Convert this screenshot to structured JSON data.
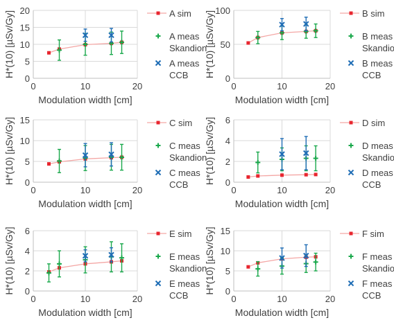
{
  "chart_data": [
    {
      "type": "scatter",
      "xlabel": "Modulation width [cm]",
      "ylabel": "H*(10) [µSv/Gy]",
      "xlim": [
        0,
        20
      ],
      "xticks": [
        0,
        10,
        20
      ],
      "ylim": [
        0,
        20
      ],
      "yticks": [
        0,
        5,
        10,
        15,
        20
      ],
      "grid": true,
      "legend": "right",
      "series": [
        {
          "name": "A sim",
          "kind": "line",
          "color": "#e8262f",
          "x": [
            3,
            5,
            10,
            15,
            17
          ],
          "y": [
            7.5,
            8.6,
            9.9,
            10.3,
            10.6
          ]
        },
        {
          "name": "A meas Skandion",
          "kind": "plus",
          "color": "#19a84b",
          "x": [
            5,
            10,
            15,
            17
          ],
          "y": [
            8.3,
            10.0,
            10.3,
            10.6
          ],
          "err": [
            3.0,
            3.2,
            3.3,
            3.3
          ]
        },
        {
          "name": "A meas CCB",
          "kind": "cross",
          "color": "#1f6db5",
          "x": [
            10,
            15
          ],
          "y": [
            12.7,
            12.7
          ],
          "err": [
            1.8,
            2.0
          ]
        }
      ]
    },
    {
      "type": "scatter",
      "xlabel": "Modulation width [cm]",
      "ylabel": "H*(10) [µSv/Gy]",
      "xlim": [
        0,
        20
      ],
      "xticks": [
        0,
        10,
        20
      ],
      "ylim": [
        0,
        100
      ],
      "yticks": [
        0,
        50,
        100
      ],
      "grid": true,
      "legend": "right",
      "series": [
        {
          "name": "B sim",
          "kind": "line",
          "color": "#e8262f",
          "x": [
            3,
            5,
            10,
            15,
            17
          ],
          "y": [
            52,
            60,
            67,
            69,
            70
          ]
        },
        {
          "name": "B meas Skandion",
          "kind": "plus",
          "color": "#19a84b",
          "x": [
            5,
            10,
            15,
            17
          ],
          "y": [
            60,
            67,
            69,
            70
          ],
          "err": [
            9,
            10,
            10,
            10
          ]
        },
        {
          "name": "B meas CCB",
          "kind": "cross",
          "color": "#1f6db5",
          "x": [
            10,
            15
          ],
          "y": [
            79,
            80
          ],
          "err": [
            9,
            10
          ]
        }
      ]
    },
    {
      "type": "scatter",
      "xlabel": "Modulation width [cm]",
      "ylabel": "H*(10) [µSv/Gy]",
      "xlim": [
        0,
        20
      ],
      "xticks": [
        0,
        10,
        20
      ],
      "ylim": [
        0,
        15
      ],
      "yticks": [
        0,
        5,
        10,
        15
      ],
      "grid": true,
      "legend": "right",
      "series": [
        {
          "name": "C sim",
          "kind": "line",
          "color": "#e8262f",
          "x": [
            3,
            5,
            10,
            15,
            17
          ],
          "y": [
            4.4,
            4.9,
            5.6,
            5.9,
            6.0
          ]
        },
        {
          "name": "C meas Skandion",
          "kind": "plus",
          "color": "#19a84b",
          "x": [
            5,
            10,
            15,
            17
          ],
          "y": [
            5.1,
            5.8,
            6.0,
            6.0
          ],
          "err": [
            2.8,
            3.0,
            3.1,
            3.1
          ]
        },
        {
          "name": "C meas CCB",
          "kind": "cross",
          "color": "#1f6db5",
          "x": [
            10,
            15
          ],
          "y": [
            6.5,
            6.7
          ],
          "err": [
            2.8,
            2.8
          ]
        }
      ]
    },
    {
      "type": "scatter",
      "xlabel": "Modulation width [cm]",
      "ylabel": "H*(10) [µSv/Gy]",
      "xlim": [
        0,
        20
      ],
      "xticks": [
        0,
        10,
        20
      ],
      "ylim": [
        0,
        6
      ],
      "yticks": [
        0,
        2,
        4,
        6
      ],
      "grid": true,
      "legend": "right",
      "series": [
        {
          "name": "D sim",
          "kind": "line",
          "color": "#e8262f",
          "x": [
            3,
            5,
            10,
            15,
            17
          ],
          "y": [
            0.5,
            0.6,
            0.68,
            0.72,
            0.74
          ]
        },
        {
          "name": "D meas Skandion",
          "kind": "plus",
          "color": "#19a84b",
          "x": [
            5,
            10,
            15,
            17
          ],
          "y": [
            1.9,
            2.2,
            2.3,
            2.3
          ],
          "err": [
            1.0,
            1.1,
            1.2,
            1.2
          ]
        },
        {
          "name": "D meas CCB",
          "kind": "cross",
          "color": "#1f6db5",
          "x": [
            10,
            15
          ],
          "y": [
            2.7,
            2.8
          ],
          "err": [
            1.5,
            1.6
          ]
        }
      ]
    },
    {
      "type": "scatter",
      "xlabel": "Modulation width [cm]",
      "ylabel": "H*(10) [µSv/Gy]",
      "xlim": [
        0,
        20
      ],
      "xticks": [
        0,
        10,
        20
      ],
      "ylim": [
        0,
        6
      ],
      "yticks": [
        0,
        2,
        4,
        6
      ],
      "grid": true,
      "legend": "right",
      "series": [
        {
          "name": "E sim",
          "kind": "line",
          "color": "#e8262f",
          "x": [
            3,
            5,
            10,
            15,
            17
          ],
          "y": [
            1.9,
            2.3,
            2.7,
            2.9,
            3.0
          ]
        },
        {
          "name": "E meas Skandion",
          "kind": "plus",
          "color": "#19a84b",
          "x": [
            3,
            5,
            10,
            15,
            17
          ],
          "y": [
            1.8,
            2.7,
            3.1,
            3.4,
            3.3
          ],
          "err": [
            0.9,
            1.3,
            1.3,
            1.5,
            1.4
          ]
        },
        {
          "name": "E meas CCB",
          "kind": "cross",
          "color": "#1f6db5",
          "x": [
            10,
            15
          ],
          "y": [
            3.5,
            3.6
          ],
          "err": [
            0.6,
            0.7
          ]
        }
      ]
    },
    {
      "type": "scatter",
      "xlabel": "Modulation width [cm]",
      "ylabel": "H*(10) [µSv/Gy]",
      "xlim": [
        0,
        20
      ],
      "xticks": [
        0,
        10,
        20
      ],
      "ylim": [
        0,
        15
      ],
      "yticks": [
        0,
        5,
        10,
        15
      ],
      "grid": true,
      "legend": "right",
      "series": [
        {
          "name": "F sim",
          "kind": "line",
          "color": "#e8262f",
          "x": [
            3,
            5,
            10,
            15,
            17
          ],
          "y": [
            6.0,
            7.0,
            8.0,
            8.4,
            8.5
          ]
        },
        {
          "name": "F meas Skandion",
          "kind": "plus",
          "color": "#19a84b",
          "x": [
            5,
            10,
            15,
            17
          ],
          "y": [
            5.5,
            6.2,
            6.8,
            7.2
          ],
          "err": [
            1.8,
            2.0,
            2.2,
            2.2
          ]
        },
        {
          "name": "F meas CCB",
          "kind": "cross",
          "color": "#1f6db5",
          "x": [
            10,
            15
          ],
          "y": [
            8.2,
            8.8
          ],
          "err": [
            2.5,
            2.7
          ]
        }
      ]
    }
  ]
}
